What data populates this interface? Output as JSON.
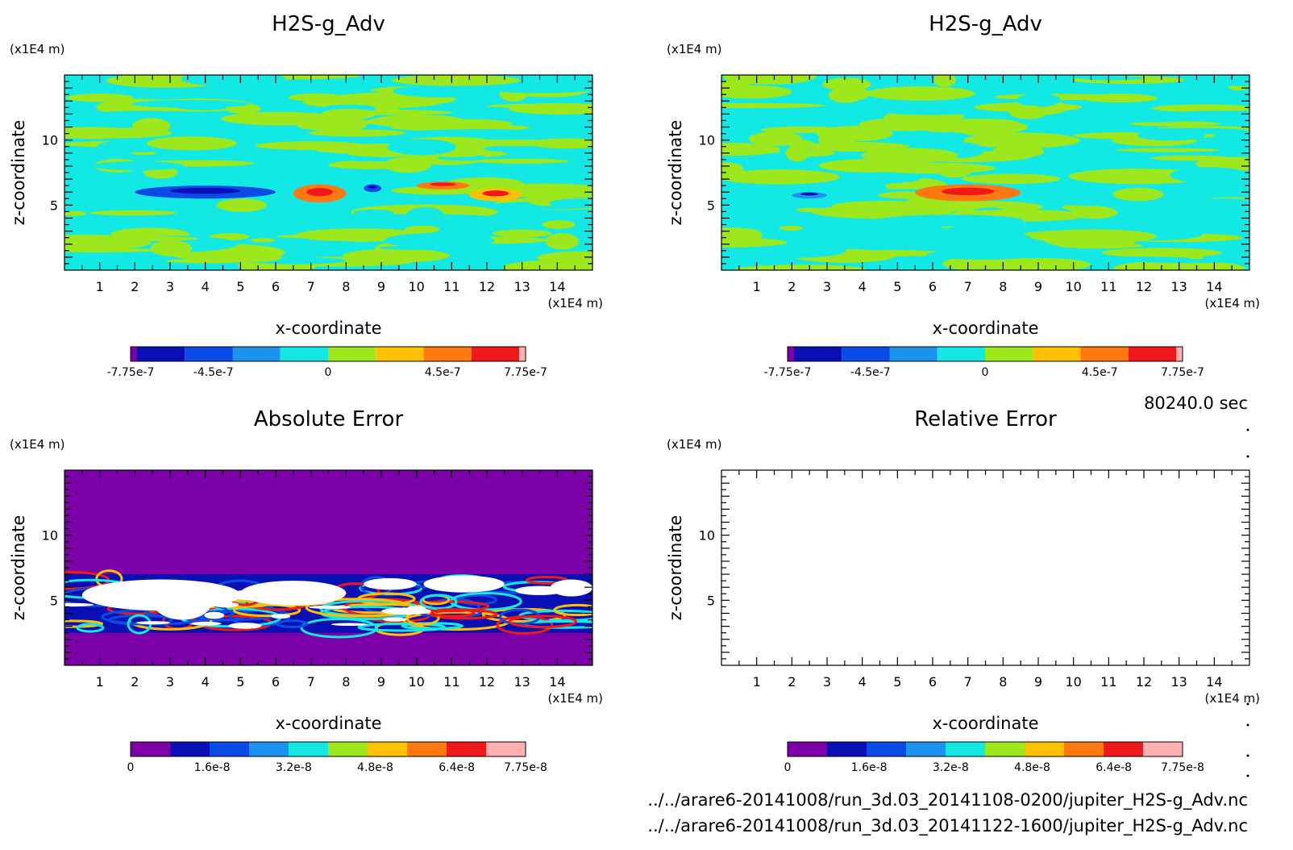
{
  "timestamp": "80240.0 sec",
  "files": [
    "../../arare6-20141008/run_3d.03_20141108-0200/jupiter_H2S-g_Adv.nc",
    "../../arare6-20141008/run_3d.03_20141122-1600/jupiter_H2S-g_Adv.nc"
  ],
  "palette": [
    "#7b00a8",
    "#0b10b4",
    "#0a4ae6",
    "#1c93ee",
    "#12e8e4",
    "#9ce81c",
    "#ffc000",
    "#ff7810",
    "#f01818",
    "#ffb0b0"
  ],
  "chart_data": [
    {
      "type": "heatmap",
      "title": "H2S-g_Adv",
      "xlabel": "x-coordinate",
      "ylabel": "z-coordinate",
      "x_unit": "(x1E4 m)",
      "y_unit": "(x1E4 m)",
      "xlim": [
        0,
        15
      ],
      "ylim": [
        0,
        15
      ],
      "x_ticks": [
        "1",
        "2",
        "3",
        "4",
        "5",
        "6",
        "7",
        "8",
        "9",
        "10",
        "11",
        "12",
        "13",
        "14"
      ],
      "y_ticks": [
        "5",
        "10"
      ],
      "colorbar": {
        "range": [
          -7.75e-07,
          7.75e-07
        ],
        "tick_labels": [
          "-7.75e-7",
          "-4.5e-7",
          "0",
          "4.5e-7",
          "7.75e-7"
        ],
        "tick_values": [
          -7.75e-07,
          -4.5e-07,
          0,
          4.5e-07,
          7.75e-07
        ]
      },
      "features": [
        {
          "x": [
            2,
            6
          ],
          "z": [
            5.5,
            6.5
          ],
          "level": "-4.5e-7"
        },
        {
          "x": [
            6.5,
            8
          ],
          "z": [
            5.2,
            6.6
          ],
          "level": "4.5e-7"
        },
        {
          "x": [
            8.5,
            9
          ],
          "z": [
            6,
            6.6
          ],
          "level": "-4.5e-7"
        },
        {
          "x": [
            10,
            11.5
          ],
          "z": [
            6.2,
            6.8
          ],
          "level": "4.5e-7"
        },
        {
          "x": [
            11.5,
            13
          ],
          "z": [
            5.3,
            6.3
          ],
          "level": "2e-7"
        }
      ]
    },
    {
      "type": "heatmap",
      "title": "H2S-g_Adv",
      "xlabel": "x-coordinate",
      "ylabel": "z-coordinate",
      "x_unit": "(x1E4 m)",
      "y_unit": "(x1E4 m)",
      "xlim": [
        0,
        15
      ],
      "ylim": [
        0,
        15
      ],
      "x_ticks": [
        "1",
        "2",
        "3",
        "4",
        "5",
        "6",
        "7",
        "8",
        "9",
        "10",
        "11",
        "12",
        "13",
        "14"
      ],
      "y_ticks": [
        "5",
        "10"
      ],
      "colorbar": {
        "range": [
          -7.75e-07,
          7.75e-07
        ],
        "tick_labels": [
          "-7.75e-7",
          "-4.5e-7",
          "0",
          "4.5e-7",
          "7.75e-7"
        ],
        "tick_values": [
          -7.75e-07,
          -4.5e-07,
          0,
          4.5e-07,
          7.75e-07
        ]
      },
      "features": [
        {
          "x": [
            5.5,
            8.5
          ],
          "z": [
            5.3,
            6.6
          ],
          "level": "4.5e-7"
        },
        {
          "x": [
            2,
            3
          ],
          "z": [
            5.5,
            6
          ],
          "level": "-2e-7"
        }
      ]
    },
    {
      "type": "heatmap",
      "title": "Absolute Error",
      "xlabel": "x-coordinate",
      "ylabel": "z-coordinate",
      "x_unit": "(x1E4 m)",
      "y_unit": "(x1E4 m)",
      "xlim": [
        0,
        15
      ],
      "ylim": [
        0,
        15
      ],
      "x_ticks": [
        "1",
        "2",
        "3",
        "4",
        "5",
        "6",
        "7",
        "8",
        "9",
        "10",
        "11",
        "12",
        "13",
        "14"
      ],
      "y_ticks": [
        "5",
        "10"
      ],
      "colorbar": {
        "range": [
          0,
          7.75e-08
        ],
        "tick_labels": [
          "0",
          "1.6e-8",
          "3.2e-8",
          "4.8e-8",
          "6.4e-8",
          "7.75e-8"
        ],
        "tick_values": [
          0,
          1.6e-08,
          3.2e-08,
          4.8e-08,
          6.4e-08,
          7.75e-08
        ]
      },
      "band": {
        "z": [
          2.5,
          7.0
        ],
        "note_value": "above 7.75e-8 rendered blank"
      }
    },
    {
      "type": "heatmap",
      "title": "Relative Error",
      "xlabel": "x-coordinate",
      "ylabel": "z-coordinate",
      "x_unit": "(x1E4 m)",
      "y_unit": "(x1E4 m)",
      "xlim": [
        0,
        15
      ],
      "ylim": [
        0,
        15
      ],
      "x_ticks": [
        "1",
        "2",
        "3",
        "4",
        "5",
        "6",
        "7",
        "8",
        "9",
        "10",
        "11",
        "12",
        "13",
        "14"
      ],
      "y_ticks": [
        "5",
        "10"
      ],
      "colorbar": {
        "range": [
          0,
          7.75e-08
        ],
        "tick_labels": [
          "0",
          "1.6e-8",
          "3.2e-8",
          "4.8e-8",
          "6.4e-8",
          "7.75e-8"
        ],
        "tick_values": [
          0,
          1.6e-08,
          3.2e-08,
          4.8e-08,
          6.4e-08,
          7.75e-08
        ]
      },
      "empty": true
    }
  ]
}
